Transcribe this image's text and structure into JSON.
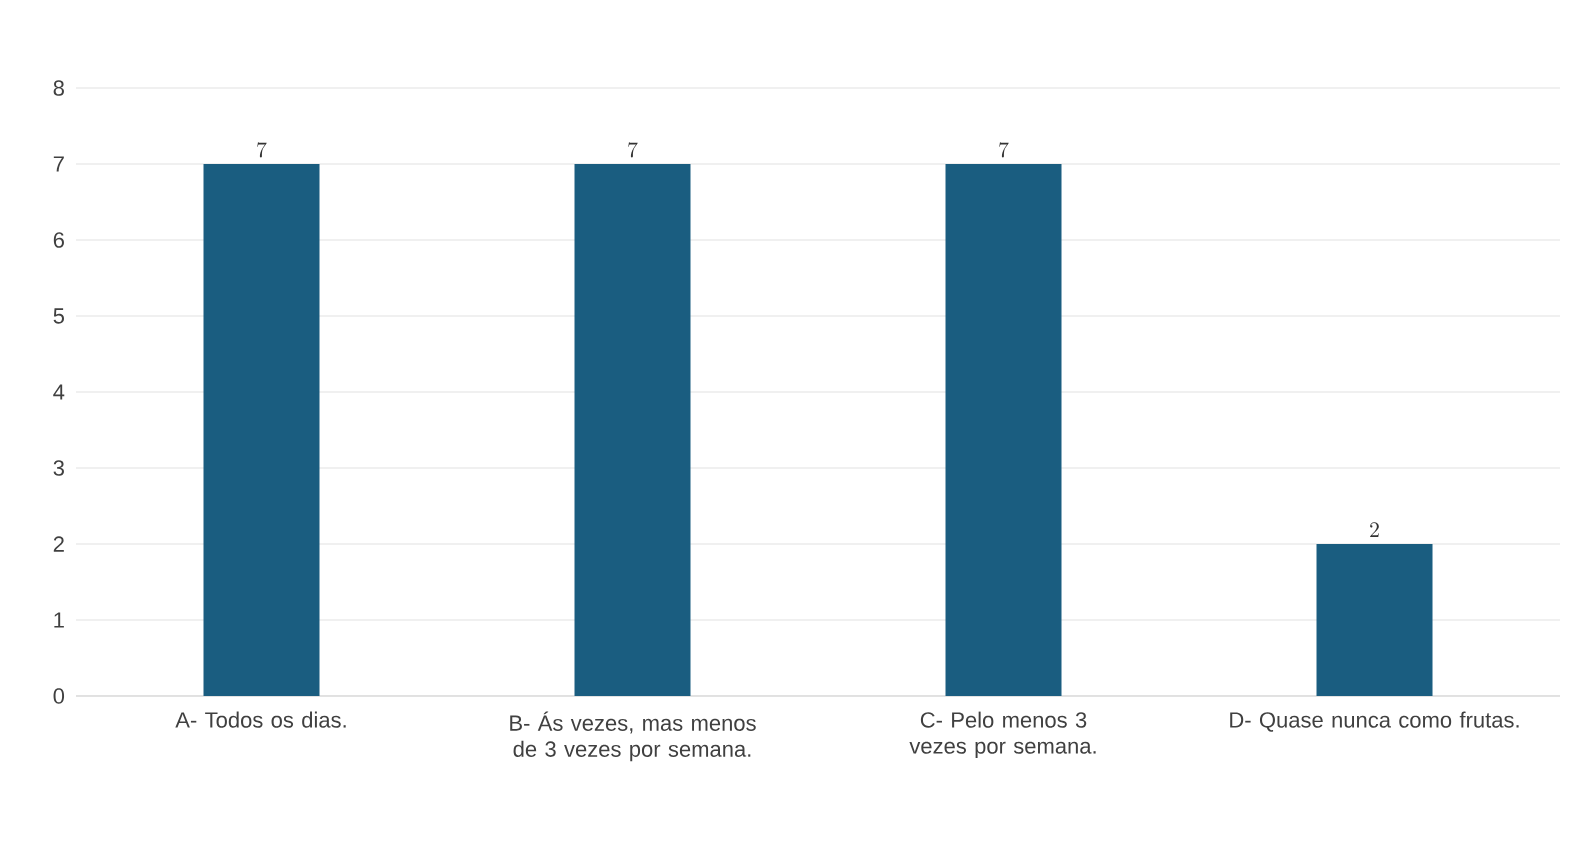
{
  "chart_data": {
    "type": "bar",
    "categories": [
      "A- Todos os dias.",
      "B- Ás vezes, mas menos de 3 vezes por semana.",
      "C- Pelo menos 3 vezes por semana.",
      "D- Quase nunca como frutas."
    ],
    "values": [
      7,
      7,
      7,
      2
    ],
    "color": "#1a5d80",
    "ylim": [
      0,
      8
    ],
    "yticks": [
      0,
      1,
      2,
      3,
      4,
      5,
      6,
      7,
      8
    ],
    "grid": "y",
    "data_labels": true
  }
}
